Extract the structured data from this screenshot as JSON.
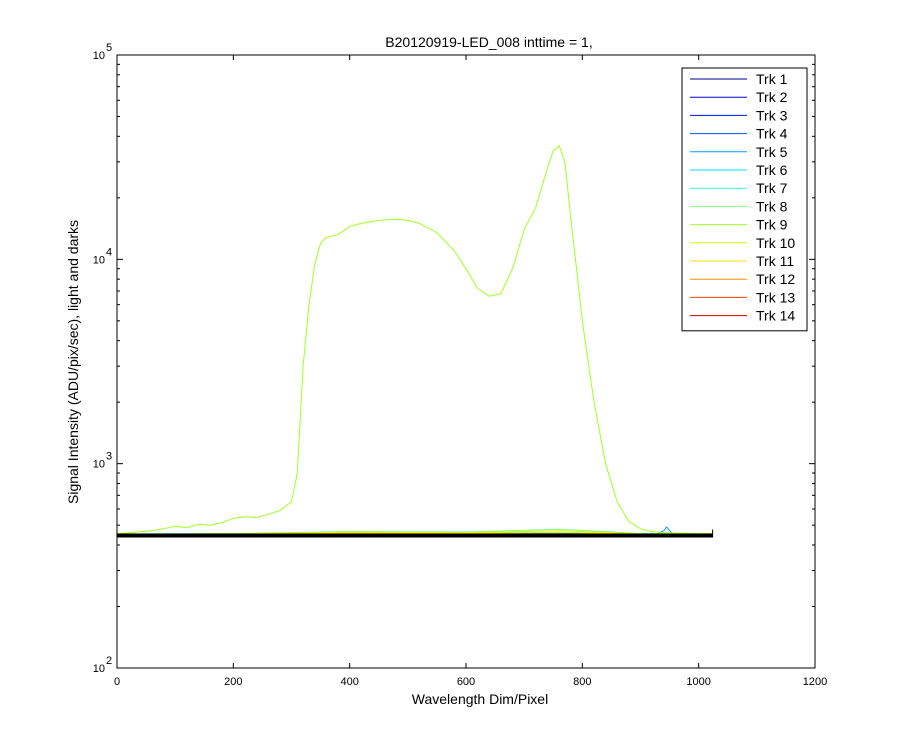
{
  "chart_data": {
    "type": "line",
    "title": "B20120919-LED_008 inttime = 1,",
    "xlabel": "Wavelength Dim/Pixel",
    "ylabel": "Signal Intensity (ADU/pix/sec), light and darks",
    "xlim": [
      0,
      1200
    ],
    "ylim": [
      100,
      100000
    ],
    "yscale": "log",
    "x_ticks": [
      0,
      200,
      400,
      600,
      800,
      1000,
      1200
    ],
    "x_tick_labels": [
      "0",
      "200",
      "400",
      "600",
      "800",
      "1000",
      "1200"
    ],
    "y_ticks": [
      {
        "value": 100,
        "base": "10",
        "exp": "2"
      },
      {
        "value": 1000,
        "base": "10",
        "exp": "3"
      },
      {
        "value": 10000,
        "base": "10",
        "exp": "4"
      },
      {
        "value": 100000,
        "base": "10",
        "exp": "5"
      }
    ],
    "grid": false,
    "legend_position": "top-right",
    "series": [
      {
        "name": "Trk 1",
        "color": "#00008f",
        "x": [
          0,
          1024
        ],
        "y": [
          450,
          450
        ]
      },
      {
        "name": "Trk 2",
        "color": "#0000cf",
        "x": [
          0,
          1024
        ],
        "y": [
          450,
          450
        ]
      },
      {
        "name": "Trk 3",
        "color": "#0010ff",
        "x": [
          0,
          1024
        ],
        "y": [
          450,
          450
        ]
      },
      {
        "name": "Trk 4",
        "color": "#0050ff",
        "x": [
          0,
          1024
        ],
        "y": [
          450,
          450
        ]
      },
      {
        "name": "Trk 5",
        "color": "#00a0ff",
        "x": [
          0,
          930,
          940,
          945,
          950,
          955,
          960,
          1024
        ],
        "y": [
          452,
          455,
          470,
          490,
          470,
          455,
          452,
          450
        ]
      },
      {
        "name": "Trk 6",
        "color": "#00e0ff",
        "x": [
          0,
          1024
        ],
        "y": [
          452,
          452
        ]
      },
      {
        "name": "Trk 7",
        "color": "#30ffcf",
        "x": [
          0,
          1024
        ],
        "y": [
          453,
          453
        ]
      },
      {
        "name": "Trk 8",
        "color": "#80ff80",
        "x": [
          0,
          200,
          400,
          600,
          760,
          900,
          1024
        ],
        "y": [
          452,
          455,
          465,
          463,
          478,
          455,
          452
        ]
      },
      {
        "name": "Trk 9",
        "color": "#a0ff20",
        "x": [
          0,
          20,
          40,
          60,
          80,
          100,
          120,
          140,
          160,
          180,
          200,
          220,
          240,
          260,
          280,
          290,
          300,
          310,
          320,
          330,
          340,
          350,
          360,
          380,
          400,
          420,
          450,
          480,
          500,
          520,
          550,
          580,
          600,
          620,
          640,
          660,
          680,
          700,
          720,
          740,
          750,
          760,
          770,
          780,
          790,
          800,
          820,
          840,
          860,
          880,
          900,
          920,
          940,
          960,
          1000,
          1024
        ],
        "y": [
          455,
          458,
          465,
          470,
          480,
          495,
          485,
          505,
          500,
          515,
          540,
          550,
          545,
          565,
          590,
          620,
          650,
          900,
          3000,
          6000,
          9500,
          12000,
          12800,
          13200,
          14500,
          15000,
          15500,
          15700,
          15500,
          15000,
          13500,
          11000,
          9000,
          7200,
          6600,
          6800,
          9000,
          14000,
          18000,
          28000,
          34000,
          36000,
          30000,
          16000,
          9000,
          5000,
          2000,
          1000,
          650,
          520,
          480,
          465,
          460,
          458,
          455,
          455
        ]
      },
      {
        "name": "Trk 10",
        "color": "#cfff00",
        "x": [
          0,
          200,
          400,
          600,
          760,
          900,
          1024
        ],
        "y": [
          451,
          454,
          462,
          460,
          470,
          454,
          451
        ]
      },
      {
        "name": "Trk 11",
        "color": "#ffdf00",
        "x": [
          0,
          200,
          400,
          600,
          760,
          900,
          1024
        ],
        "y": [
          450,
          452,
          458,
          457,
          462,
          452,
          450
        ]
      },
      {
        "name": "Trk 12",
        "color": "#ff8f00",
        "x": [
          0,
          1024
        ],
        "y": [
          449,
          449
        ]
      },
      {
        "name": "Trk 13",
        "color": "#ff4000",
        "x": [
          0,
          1024
        ],
        "y": [
          448,
          448
        ]
      },
      {
        "name": "Trk 14",
        "color": "#cf0000",
        "x": [
          0,
          1024
        ],
        "y": [
          447,
          447
        ]
      },
      {
        "name": "",
        "color": "#000000",
        "x": [
          0,
          1024
        ],
        "y": [
          445,
          445
        ]
      }
    ]
  }
}
